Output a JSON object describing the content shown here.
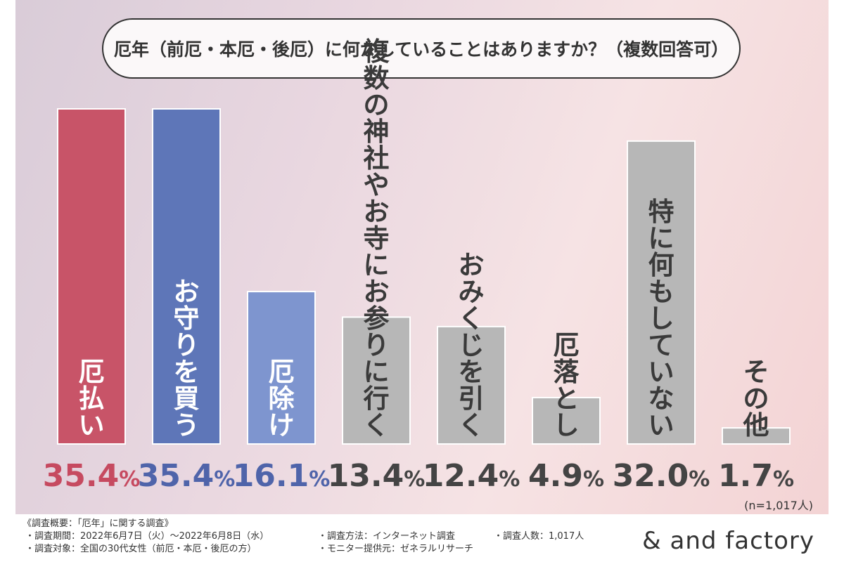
{
  "chart_data": {
    "type": "bar",
    "title": "厄年（前厄・本厄・後厄）に何かしていることはありますか？（複数回答可）",
    "categories": [
      "厄払い",
      "お守りを買う",
      "厄除け",
      "複数の神社やお寺にお参りに行く",
      "おみくじを引く",
      "厄落とし",
      "特に何もしていない",
      "その他"
    ],
    "values": [
      35.4,
      35.4,
      16.1,
      13.4,
      12.4,
      4.9,
      32.0,
      1.7
    ],
    "value_labels": [
      "35.4",
      "35.4",
      "16.1",
      "13.4",
      "12.4",
      "4.9",
      "32.0",
      "1.7"
    ],
    "unit": "%",
    "ylim": [
      0,
      35.4
    ],
    "colors": [
      "#c85468",
      "#5e76b8",
      "#7e95cf",
      "#b7b7b7",
      "#b7b7b7",
      "#b7b7b7",
      "#b7b7b7",
      "#b7b7b7"
    ],
    "value_colors": [
      "#c64a60",
      "#4f64aa",
      "#4f64aa",
      "#444444",
      "#444444",
      "#444444",
      "#444444",
      "#444444"
    ],
    "label_colors": [
      "light",
      "light",
      "light",
      "dark",
      "dark",
      "dark",
      "dark",
      "dark"
    ],
    "note": "(n=1,017人)"
  },
  "footer": {
    "heading": "《調査概要：「厄年」に関する調査》",
    "period": "・調査期間：2022年6月7日（火）〜2022年6月8日（水）",
    "target": "・調査対象：全国の30代女性（前厄・本厄・後厄の方）",
    "method": "・調査方法：インターネット調査",
    "count": "・調査人数：1,017人",
    "provider": "・モニター提供元：ゼネラルリサーチ",
    "logo": "& and factory"
  }
}
